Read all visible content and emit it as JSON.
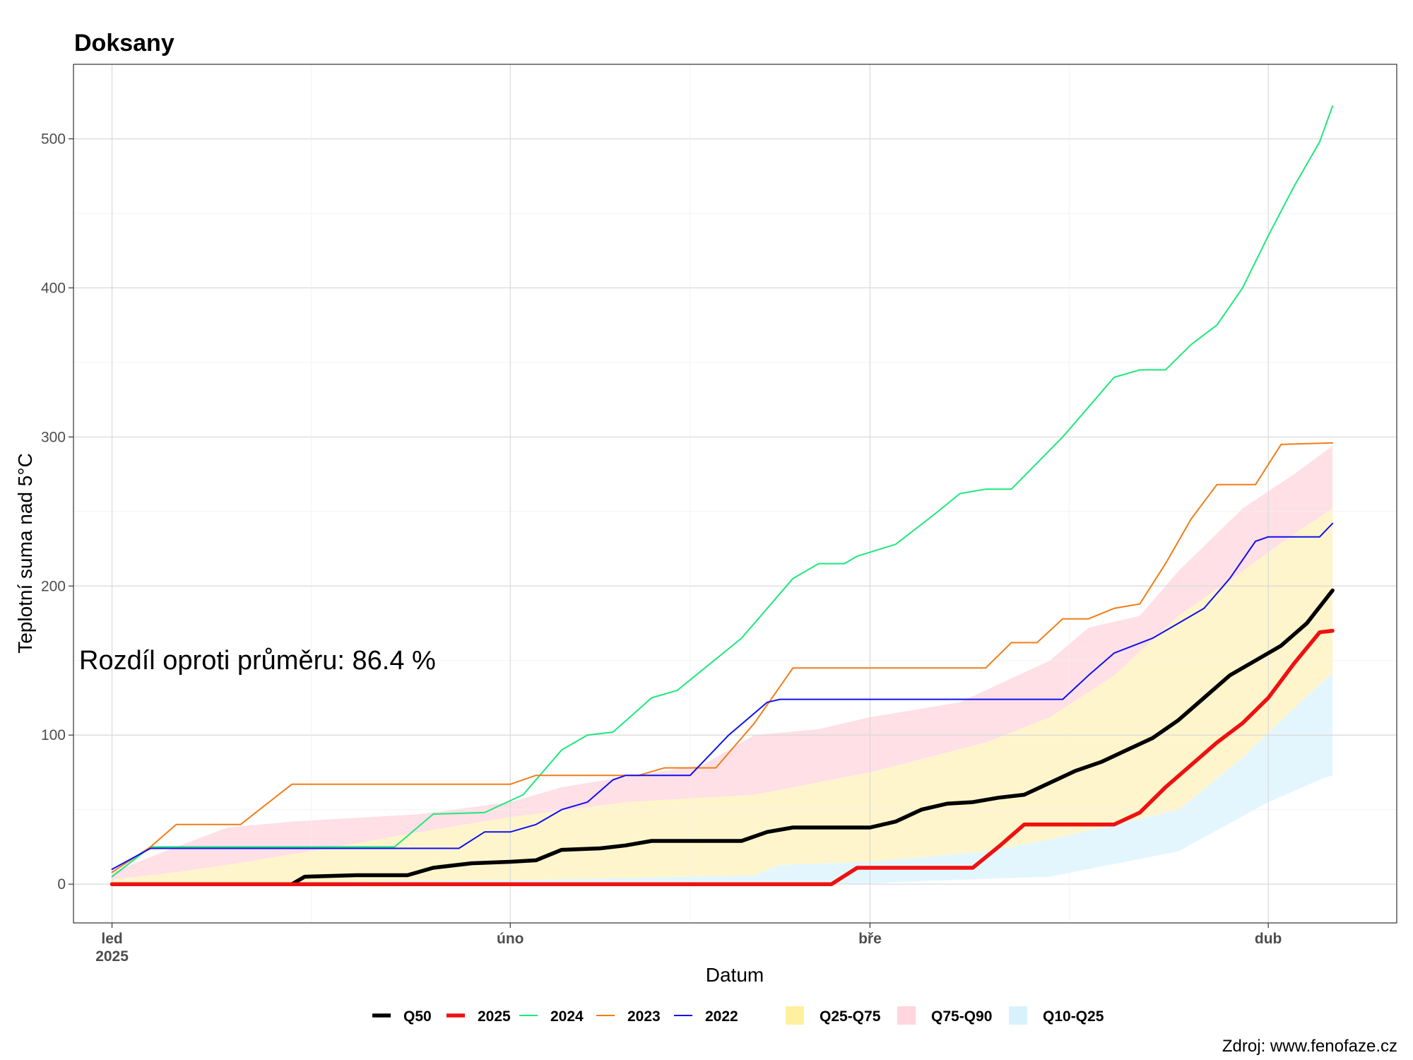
{
  "chart_data": {
    "type": "line",
    "title": "Doksany",
    "xlabel": "Datum",
    "ylabel": "Teplotní suma nad 5°C",
    "annotation": "Rozdíl oproti průměru: 86.4 %",
    "caption": "Zdroj: www.fenofaze.cz",
    "grid": true,
    "legend_position": "bottom",
    "x_unit": "date",
    "xlim": [
      "2024-12-29",
      "2025-04-11"
    ],
    "ylim": [
      -26,
      550
    ],
    "x_ticks": [
      {
        "date": "2025-01-01",
        "label": "led",
        "sublabel": "2025"
      },
      {
        "date": "2025-02-01",
        "label": "úno",
        "sublabel": ""
      },
      {
        "date": "2025-03-01",
        "label": "bře",
        "sublabel": ""
      },
      {
        "date": "2025-04-01",
        "label": "dub",
        "sublabel": ""
      }
    ],
    "y_ticks": [
      0,
      100,
      200,
      300,
      400,
      500
    ],
    "bands": [
      {
        "name": "Q10-Q25",
        "color": "#e4f6fd",
        "lower": [
          [
            "2025-01-01",
            0
          ],
          [
            "2025-02-01",
            0
          ],
          [
            "2025-02-28",
            0
          ],
          [
            "2025-03-05",
            2
          ],
          [
            "2025-03-15",
            5
          ],
          [
            "2025-03-25",
            22
          ],
          [
            "2025-04-01",
            55
          ],
          [
            "2025-04-05",
            70
          ],
          [
            "2025-04-06",
            73
          ]
        ],
        "upper": [
          [
            "2025-01-01",
            0
          ],
          [
            "2025-02-04",
            3
          ],
          [
            "2025-02-20",
            6
          ],
          [
            "2025-02-22",
            13
          ],
          [
            "2025-03-01",
            15
          ],
          [
            "2025-03-10",
            22
          ],
          [
            "2025-03-15",
            30
          ],
          [
            "2025-03-20",
            40
          ],
          [
            "2025-03-25",
            50
          ],
          [
            "2025-03-30",
            85
          ],
          [
            "2025-04-02",
            110
          ],
          [
            "2025-04-06",
            142
          ]
        ]
      },
      {
        "name": "Q25-Q75",
        "color": "#fff5cc",
        "lower": [
          [
            "2025-01-01",
            0
          ],
          [
            "2025-02-04",
            3
          ],
          [
            "2025-02-20",
            6
          ],
          [
            "2025-02-22",
            13
          ],
          [
            "2025-03-01",
            15
          ],
          [
            "2025-03-10",
            22
          ],
          [
            "2025-03-15",
            30
          ],
          [
            "2025-03-20",
            40
          ],
          [
            "2025-03-25",
            50
          ],
          [
            "2025-03-30",
            85
          ],
          [
            "2025-04-02",
            110
          ],
          [
            "2025-04-06",
            142
          ]
        ],
        "upper": [
          [
            "2025-01-01",
            3
          ],
          [
            "2025-01-06",
            8
          ],
          [
            "2025-01-10",
            13
          ],
          [
            "2025-01-15",
            20
          ],
          [
            "2025-01-25",
            35
          ],
          [
            "2025-02-01",
            45
          ],
          [
            "2025-02-10",
            55
          ],
          [
            "2025-02-20",
            60
          ],
          [
            "2025-03-01",
            75
          ],
          [
            "2025-03-10",
            95
          ],
          [
            "2025-03-15",
            112
          ],
          [
            "2025-03-20",
            140
          ],
          [
            "2025-03-25",
            180
          ],
          [
            "2025-03-30",
            210
          ],
          [
            "2025-04-03",
            235
          ],
          [
            "2025-04-06",
            252
          ]
        ]
      },
      {
        "name": "Q75-Q90",
        "color": "#ffe0e6",
        "lower": [
          [
            "2025-01-01",
            3
          ],
          [
            "2025-01-06",
            8
          ],
          [
            "2025-01-10",
            13
          ],
          [
            "2025-01-15",
            20
          ],
          [
            "2025-01-25",
            35
          ],
          [
            "2025-02-01",
            45
          ],
          [
            "2025-02-10",
            55
          ],
          [
            "2025-02-20",
            60
          ],
          [
            "2025-03-01",
            75
          ],
          [
            "2025-03-10",
            95
          ],
          [
            "2025-03-15",
            112
          ],
          [
            "2025-03-20",
            140
          ],
          [
            "2025-03-25",
            180
          ],
          [
            "2025-03-30",
            210
          ],
          [
            "2025-04-03",
            235
          ],
          [
            "2025-04-06",
            252
          ]
        ],
        "upper": [
          [
            "2025-01-01",
            8
          ],
          [
            "2025-01-06",
            25
          ],
          [
            "2025-01-10",
            38
          ],
          [
            "2025-01-15",
            42
          ],
          [
            "2025-01-25",
            47
          ],
          [
            "2025-02-01",
            55
          ],
          [
            "2025-02-05",
            65
          ],
          [
            "2025-02-10",
            72
          ],
          [
            "2025-02-16",
            80
          ],
          [
            "2025-02-20",
            100
          ],
          [
            "2025-02-25",
            104
          ],
          [
            "2025-03-01",
            112
          ],
          [
            "2025-03-08",
            122
          ],
          [
            "2025-03-15",
            150
          ],
          [
            "2025-03-18",
            172
          ],
          [
            "2025-03-22",
            180
          ],
          [
            "2025-03-25",
            210
          ],
          [
            "2025-03-30",
            252
          ],
          [
            "2025-04-03",
            275
          ],
          [
            "2025-04-06",
            294
          ]
        ]
      }
    ],
    "series": [
      {
        "name": "2024",
        "color": "#1de87a",
        "width": 2,
        "points": [
          [
            "2025-01-01",
            5
          ],
          [
            "2025-01-04",
            25
          ],
          [
            "2025-01-23",
            25
          ],
          [
            "2025-01-26",
            47
          ],
          [
            "2025-01-30",
            48
          ],
          [
            "2025-02-02",
            60
          ],
          [
            "2025-02-05",
            90
          ],
          [
            "2025-02-07",
            100
          ],
          [
            "2025-02-09",
            102
          ],
          [
            "2025-02-12",
            125
          ],
          [
            "2025-02-14",
            130
          ],
          [
            "2025-02-19",
            165
          ],
          [
            "2025-02-23",
            205
          ],
          [
            "2025-02-25",
            215
          ],
          [
            "2025-02-27",
            215
          ],
          [
            "2025-02-28",
            220
          ],
          [
            "2025-03-03",
            228
          ],
          [
            "2025-03-06",
            248
          ],
          [
            "2025-03-08",
            262
          ],
          [
            "2025-03-10",
            265
          ],
          [
            "2025-03-12",
            265
          ],
          [
            "2025-03-16",
            300
          ],
          [
            "2025-03-18",
            320
          ],
          [
            "2025-03-20",
            340
          ],
          [
            "2025-03-22",
            345
          ],
          [
            "2025-03-24",
            345
          ],
          [
            "2025-03-26",
            362
          ],
          [
            "2025-03-28",
            375
          ],
          [
            "2025-03-30",
            400
          ],
          [
            "2025-04-01",
            435
          ],
          [
            "2025-04-03",
            468
          ],
          [
            "2025-04-05",
            498
          ],
          [
            "2025-04-06",
            522
          ]
        ]
      },
      {
        "name": "2023",
        "color": "#f07d18",
        "width": 2,
        "points": [
          [
            "2025-01-01",
            8
          ],
          [
            "2025-01-04",
            25
          ],
          [
            "2025-01-06",
            40
          ],
          [
            "2025-01-11",
            40
          ],
          [
            "2025-01-15",
            67
          ],
          [
            "2025-02-01",
            67
          ],
          [
            "2025-02-03",
            73
          ],
          [
            "2025-02-11",
            73
          ],
          [
            "2025-02-13",
            78
          ],
          [
            "2025-02-17",
            78
          ],
          [
            "2025-02-20",
            108
          ],
          [
            "2025-02-23",
            145
          ],
          [
            "2025-03-10",
            145
          ],
          [
            "2025-03-12",
            162
          ],
          [
            "2025-03-14",
            162
          ],
          [
            "2025-03-16",
            178
          ],
          [
            "2025-03-18",
            178
          ],
          [
            "2025-03-20",
            185
          ],
          [
            "2025-03-22",
            188
          ],
          [
            "2025-03-24",
            215
          ],
          [
            "2025-03-26",
            245
          ],
          [
            "2025-03-28",
            268
          ],
          [
            "2025-03-31",
            268
          ],
          [
            "2025-04-02",
            295
          ],
          [
            "2025-04-06",
            296
          ]
        ]
      },
      {
        "name": "2022",
        "color": "#1010ee",
        "width": 2,
        "points": [
          [
            "2025-01-01",
            10
          ],
          [
            "2025-01-04",
            24
          ],
          [
            "2025-01-28",
            24
          ],
          [
            "2025-01-30",
            35
          ],
          [
            "2025-02-01",
            35
          ],
          [
            "2025-02-03",
            40
          ],
          [
            "2025-02-05",
            50
          ],
          [
            "2025-02-07",
            55
          ],
          [
            "2025-02-09",
            70
          ],
          [
            "2025-02-10",
            73
          ],
          [
            "2025-02-15",
            73
          ],
          [
            "2025-02-18",
            100
          ],
          [
            "2025-02-21",
            122
          ],
          [
            "2025-02-22",
            124
          ],
          [
            "2025-03-16",
            124
          ],
          [
            "2025-03-18",
            140
          ],
          [
            "2025-03-20",
            155
          ],
          [
            "2025-03-23",
            165
          ],
          [
            "2025-03-25",
            175
          ],
          [
            "2025-03-27",
            185
          ],
          [
            "2025-03-29",
            205
          ],
          [
            "2025-03-31",
            230
          ],
          [
            "2025-04-01",
            233
          ],
          [
            "2025-04-05",
            233
          ],
          [
            "2025-04-06",
            242
          ]
        ]
      },
      {
        "name": "Q50",
        "color": "#000000",
        "width": 5.5,
        "points": [
          [
            "2025-01-01",
            0
          ],
          [
            "2025-01-15",
            0
          ],
          [
            "2025-01-16",
            5
          ],
          [
            "2025-01-20",
            6
          ],
          [
            "2025-01-24",
            6
          ],
          [
            "2025-01-26",
            11
          ],
          [
            "2025-01-29",
            14
          ],
          [
            "2025-02-01",
            15
          ],
          [
            "2025-02-03",
            16
          ],
          [
            "2025-02-05",
            23
          ],
          [
            "2025-02-08",
            24
          ],
          [
            "2025-02-10",
            26
          ],
          [
            "2025-02-12",
            29
          ],
          [
            "2025-02-19",
            29
          ],
          [
            "2025-02-21",
            35
          ],
          [
            "2025-02-23",
            38
          ],
          [
            "2025-03-01",
            38
          ],
          [
            "2025-03-03",
            42
          ],
          [
            "2025-03-05",
            50
          ],
          [
            "2025-03-07",
            54
          ],
          [
            "2025-03-09",
            55
          ],
          [
            "2025-03-11",
            58
          ],
          [
            "2025-03-13",
            60
          ],
          [
            "2025-03-15",
            68
          ],
          [
            "2025-03-17",
            76
          ],
          [
            "2025-03-19",
            82
          ],
          [
            "2025-03-21",
            90
          ],
          [
            "2025-03-23",
            98
          ],
          [
            "2025-03-25",
            110
          ],
          [
            "2025-03-27",
            125
          ],
          [
            "2025-03-29",
            140
          ],
          [
            "2025-03-31",
            150
          ],
          [
            "2025-04-02",
            160
          ],
          [
            "2025-04-04",
            175
          ],
          [
            "2025-04-06",
            197
          ]
        ]
      },
      {
        "name": "2025",
        "color": "#ee1111",
        "width": 5.5,
        "points": [
          [
            "2025-01-01",
            0
          ],
          [
            "2025-02-26",
            0
          ],
          [
            "2025-02-28",
            11
          ],
          [
            "2025-03-09",
            11
          ],
          [
            "2025-03-11",
            25
          ],
          [
            "2025-03-13",
            40
          ],
          [
            "2025-03-20",
            40
          ],
          [
            "2025-03-22",
            48
          ],
          [
            "2025-03-24",
            65
          ],
          [
            "2025-03-26",
            80
          ],
          [
            "2025-03-28",
            95
          ],
          [
            "2025-03-30",
            108
          ],
          [
            "2025-04-01",
            125
          ],
          [
            "2025-04-03",
            148
          ],
          [
            "2025-04-05",
            169
          ],
          [
            "2025-04-06",
            170
          ]
        ]
      }
    ],
    "legend": [
      {
        "name": "Q50",
        "kind": "line",
        "color": "#000000",
        "width": 5.5
      },
      {
        "name": "2025",
        "kind": "line",
        "color": "#ee1111",
        "width": 5.5
      },
      {
        "name": "2024",
        "kind": "line",
        "color": "#1de87a",
        "width": 2
      },
      {
        "name": "2023",
        "kind": "line",
        "color": "#f07d18",
        "width": 2
      },
      {
        "name": "2022",
        "kind": "line",
        "color": "#1010ee",
        "width": 2
      },
      {
        "name": "Q25-Q75",
        "kind": "fill",
        "color": "#fff0a0"
      },
      {
        "name": "Q75-Q90",
        "kind": "fill",
        "color": "#ffd6de"
      },
      {
        "name": "Q10-Q25",
        "kind": "fill",
        "color": "#d8f2fd"
      }
    ]
  }
}
